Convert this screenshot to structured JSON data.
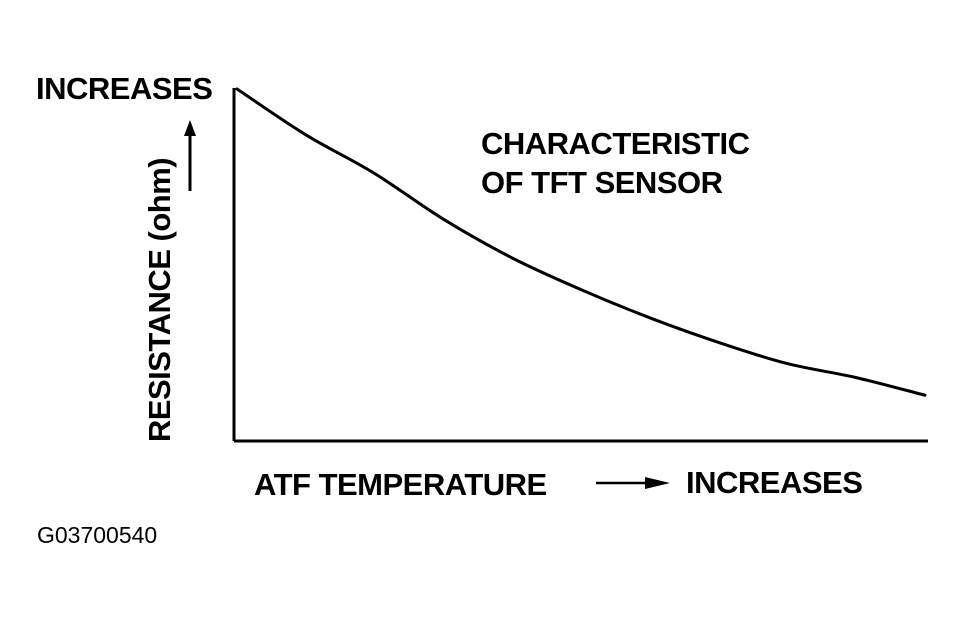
{
  "chart_data": {
    "type": "line",
    "title": "",
    "annotation": [
      "CHARACTERISTIC",
      "OF TFT SENSOR"
    ],
    "xlabel": "ATF TEMPERATURE",
    "x_direction_label": "INCREASES",
    "ylabel": "RESISTANCE (ohm)",
    "y_direction_label": "INCREASES",
    "x_ticks_shown": false,
    "y_ticks_shown": false,
    "grid": false,
    "xlim": [
      0,
      1
    ],
    "ylim": [
      0,
      1
    ],
    "series": [
      {
        "values": [
          {
            "x": 0.0,
            "y": 1.0
          },
          {
            "x": 0.1,
            "y": 0.87
          },
          {
            "x": 0.2,
            "y": 0.76
          },
          {
            "x": 0.3,
            "y": 0.63
          },
          {
            "x": 0.4,
            "y": 0.52
          },
          {
            "x": 0.5,
            "y": 0.43
          },
          {
            "x": 0.6,
            "y": 0.35
          },
          {
            "x": 0.7,
            "y": 0.28
          },
          {
            "x": 0.8,
            "y": 0.22
          },
          {
            "x": 0.9,
            "y": 0.18
          },
          {
            "x": 1.0,
            "y": 0.13
          }
        ],
        "color": "#000000"
      }
    ]
  },
  "figure_id": "G03700540"
}
